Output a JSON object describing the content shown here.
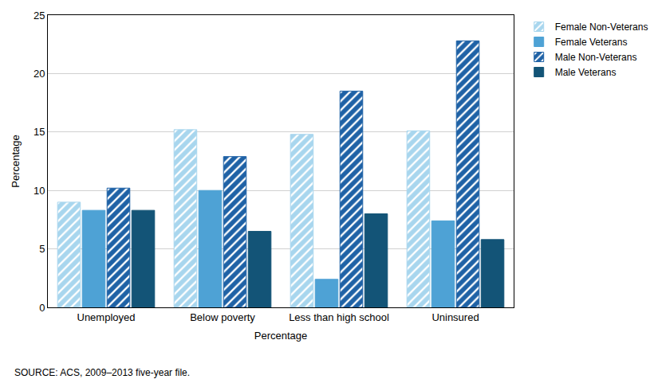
{
  "chart_data": {
    "type": "bar",
    "x_label": "Percentage",
    "y_label": "Percentage",
    "annotations": [
      "SOURCE: ACS, 2009–2013 five-year file."
    ],
    "categories": [
      "Unemployed",
      "Below poverty",
      "Less than high school",
      "Uninsured"
    ],
    "series": [
      {
        "name": "Female Non-Veterans",
        "color": "#a8d6ee",
        "marker": "hatched",
        "values": [
          9.0,
          15.2,
          14.8,
          15.1
        ]
      },
      {
        "name": "Female Veterans",
        "color": "#4ea2d5",
        "marker": "solid",
        "values": [
          8.3,
          10.0,
          2.4,
          7.4
        ]
      },
      {
        "name": "Male Non-Veterans",
        "color": "#1f62a6",
        "marker": "hatched",
        "values": [
          10.2,
          12.9,
          18.5,
          22.8
        ]
      },
      {
        "name": "Male Veterans",
        "color": "#135477",
        "marker": "solid",
        "values": [
          8.3,
          6.5,
          8.0,
          5.8
        ]
      }
    ],
    "ylim": [
      0,
      25
    ],
    "yticks": [
      0,
      5,
      10,
      15,
      20,
      25
    ],
    "grid": true,
    "legend": "top right"
  }
}
